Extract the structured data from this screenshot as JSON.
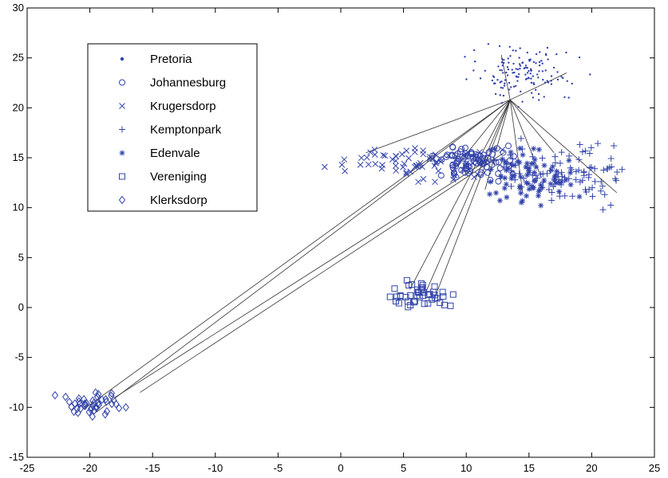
{
  "chart_data": {
    "type": "scatter",
    "title": "",
    "xlabel": "",
    "ylabel": "",
    "xlim": [
      -25,
      25
    ],
    "ylim": [
      -15,
      30
    ],
    "xticks": [
      -25,
      -20,
      -15,
      -10,
      -5,
      0,
      5,
      10,
      15,
      20,
      25
    ],
    "yticks": [
      -15,
      -10,
      -5,
      0,
      5,
      10,
      15,
      20,
      25,
      30
    ],
    "grid": false,
    "legend_position": "top-left",
    "color": "#3344aa",
    "line_color": "#333333",
    "hub": [
      13.5,
      20.8
    ],
    "series": [
      {
        "name": "Pretoria",
        "marker": "dot",
        "center": [
          14.5,
          23.5
        ],
        "spread": [
          2.0,
          1.2
        ],
        "count": 140
      },
      {
        "name": "Johannesburg",
        "marker": "circle",
        "center": [
          10.5,
          14.7
        ],
        "spread": [
          1.4,
          0.8
        ],
        "count": 85
      },
      {
        "name": "Krugersdorp",
        "marker": "x",
        "center": [
          6.0,
          14.5
        ],
        "spread": [
          2.8,
          0.9
        ],
        "count": 70
      },
      {
        "name": "Kemptonpark",
        "marker": "plus",
        "center": [
          18.0,
          13.3
        ],
        "spread": [
          2.4,
          1.4
        ],
        "count": 95
      },
      {
        "name": "Edenvale",
        "marker": "asterisk",
        "center": [
          14.5,
          12.8
        ],
        "spread": [
          1.8,
          1.4
        ],
        "count": 80
      },
      {
        "name": "Vereniging",
        "marker": "square",
        "center": [
          6.5,
          1.3
        ],
        "spread": [
          1.3,
          0.7
        ],
        "count": 45
      },
      {
        "name": "Klerksdorp",
        "marker": "diamond",
        "center": [
          -19.5,
          -9.8
        ],
        "spread": [
          1.3,
          0.6
        ],
        "count": 45
      }
    ],
    "connector_lines": [
      [
        [
          13.5,
          20.8
        ],
        [
          2.0,
          15.5
        ]
      ],
      [
        [
          13.5,
          20.8
        ],
        [
          -20.5,
          -10.2
        ]
      ],
      [
        [
          13.5,
          20.8
        ],
        [
          -19.5,
          -10.5
        ]
      ],
      [
        [
          13.5,
          20.8
        ],
        [
          5.5,
          1.8
        ]
      ],
      [
        [
          13.5,
          20.8
        ],
        [
          6.8,
          1.6
        ]
      ],
      [
        [
          13.5,
          20.8
        ],
        [
          7.5,
          1.0
        ]
      ],
      [
        [
          13.5,
          20.8
        ],
        [
          22.0,
          11.5
        ]
      ],
      [
        [
          13.5,
          20.8
        ],
        [
          18.0,
          23.5
        ]
      ],
      [
        [
          13.5,
          20.8
        ],
        [
          12.8,
          25.3
        ]
      ],
      [
        [
          13.5,
          20.8
        ],
        [
          11.5,
          11.8
        ]
      ],
      [
        [
          13.5,
          20.8
        ],
        [
          16.0,
          13.0
        ]
      ],
      [
        [
          13.5,
          20.8
        ],
        [
          9.0,
          13.8
        ]
      ],
      [
        [
          13.5,
          20.8
        ],
        [
          17.0,
          15.5
        ]
      ],
      [
        [
          13.5,
          20.8
        ],
        [
          14.5,
          11.5
        ]
      ],
      [
        [
          -16.0,
          -8.5
        ],
        [
          13.0,
          15.5
        ]
      ],
      [
        [
          -18.0,
          -9.0
        ],
        [
          12.0,
          15.0
        ]
      ]
    ]
  }
}
